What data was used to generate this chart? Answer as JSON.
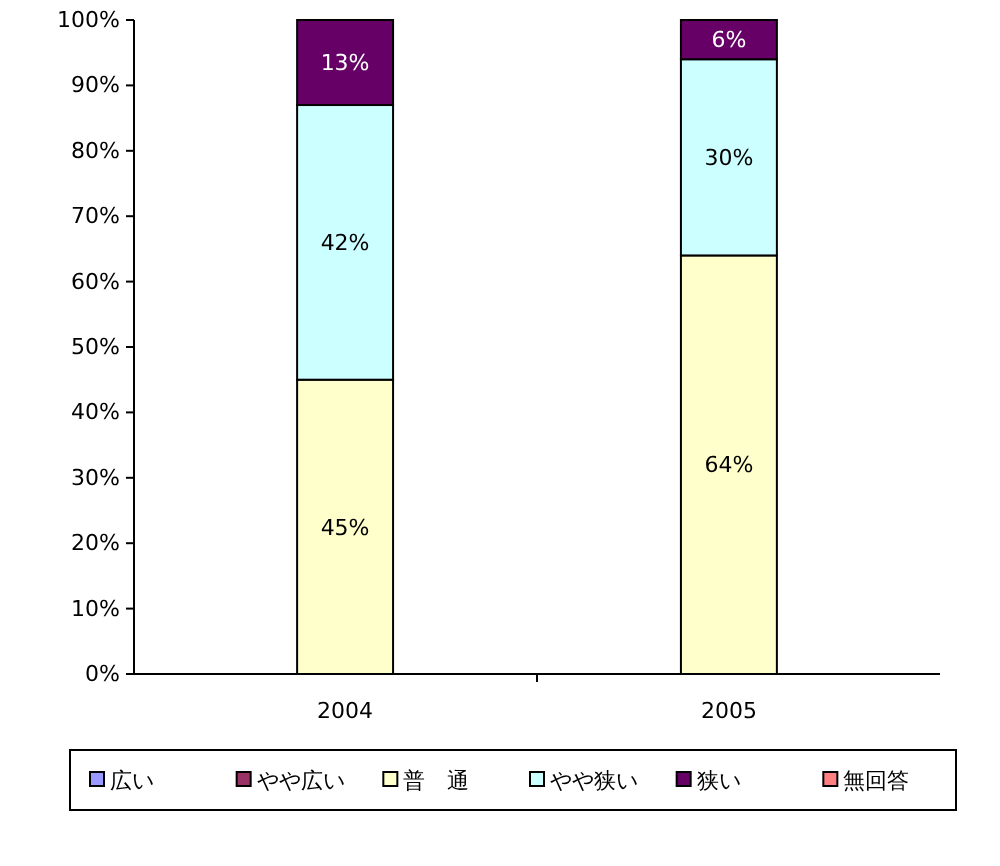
{
  "chart_data": {
    "type": "bar",
    "stacked": true,
    "categories": [
      "2004",
      "2005"
    ],
    "ylim": [
      0,
      100
    ],
    "yticks": [
      {
        "value": 0,
        "label": "0%"
      },
      {
        "value": 10,
        "label": "10%"
      },
      {
        "value": 20,
        "label": "20%"
      },
      {
        "value": 30,
        "label": "30%"
      },
      {
        "value": 40,
        "label": "40%"
      },
      {
        "value": 50,
        "label": "50%"
      },
      {
        "value": 60,
        "label": "60%"
      },
      {
        "value": 70,
        "label": "70%"
      },
      {
        "value": 80,
        "label": "80%"
      },
      {
        "value": 90,
        "label": "90%"
      },
      {
        "value": 100,
        "label": "100%"
      }
    ],
    "legend": "bottom",
    "grid": false,
    "series": [
      {
        "name": "広い",
        "color": "#9999ff",
        "values": [
          0,
          0
        ]
      },
      {
        "name": "やや広い",
        "color": "#993366",
        "values": [
          0,
          0
        ]
      },
      {
        "name": "普　通",
        "color": "#ffffcc",
        "values": [
          45,
          64
        ],
        "value_labels": [
          "45%",
          "64%"
        ]
      },
      {
        "name": "やや狭い",
        "color": "#ccffff",
        "values": [
          42,
          30
        ],
        "value_labels": [
          "42%",
          "30%"
        ]
      },
      {
        "name": "狭い",
        "color": "#660066",
        "values": [
          13,
          6
        ],
        "value_labels": [
          "13%",
          "6%"
        ]
      },
      {
        "name": "無回答",
        "color": "#ff8080",
        "values": [
          0,
          0
        ]
      }
    ]
  }
}
